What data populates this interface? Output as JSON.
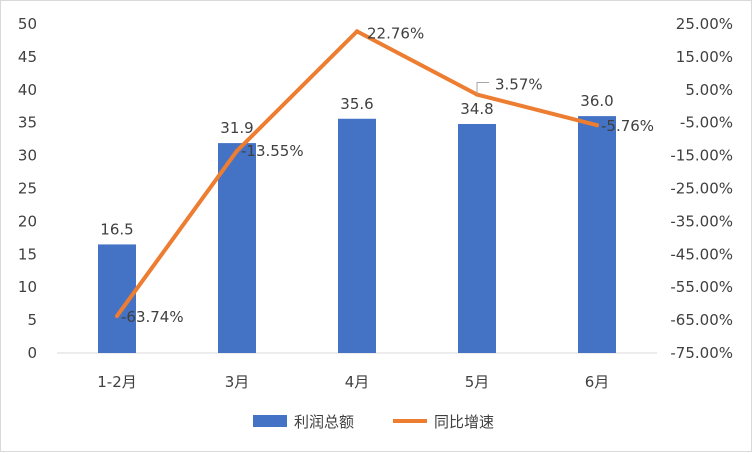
{
  "chart_data": {
    "type": "bar",
    "categories": [
      "1-2月",
      "3月",
      "4月",
      "5月",
      "6月"
    ],
    "series": [
      {
        "name": "利润总额",
        "type": "bar",
        "axis": "left",
        "color": "#4472C4",
        "values": [
          16.5,
          31.9,
          35.6,
          34.8,
          36.0
        ],
        "labels": [
          "16.5",
          "31.9",
          "35.6",
          "34.8",
          "36.0"
        ]
      },
      {
        "name": "同比增速",
        "type": "line",
        "axis": "right",
        "color": "#ED7D31",
        "values": [
          -63.74,
          -13.55,
          22.76,
          3.57,
          -5.76
        ],
        "labels": [
          "-63.74%",
          "-13.55%",
          "22.76%",
          "3.57%",
          "-5.76%"
        ]
      }
    ],
    "y_left": {
      "range": [
        0,
        50
      ],
      "ticks": [
        "0",
        "5",
        "10",
        "15",
        "20",
        "25",
        "30",
        "35",
        "40",
        "45",
        "50"
      ]
    },
    "y_right": {
      "range": [
        -75,
        25
      ],
      "ticks": [
        "-75.00%",
        "-65.00%",
        "-55.00%",
        "-45.00%",
        "-35.00%",
        "-25.00%",
        "-15.00%",
        "-5.00%",
        "5.00%",
        "15.00%",
        "25.00%"
      ]
    },
    "grid": false,
    "legend": "bottom"
  }
}
